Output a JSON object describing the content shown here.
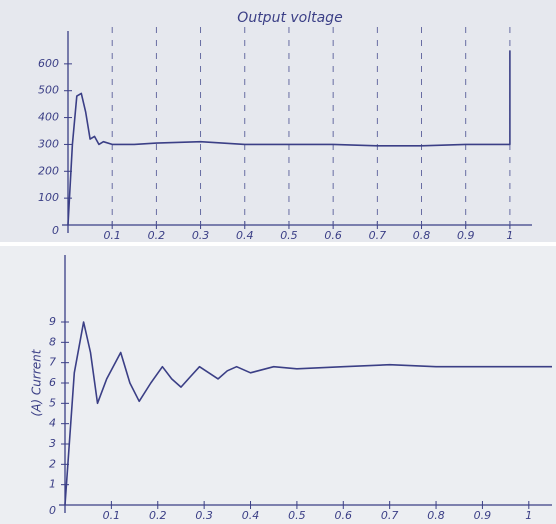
{
  "chart_data": [
    {
      "type": "line",
      "title": "Output voltage",
      "x": [
        0,
        0.01,
        0.02,
        0.03,
        0.04,
        0.05,
        0.06,
        0.07,
        0.08,
        0.1,
        0.15,
        0.2,
        0.3,
        0.4,
        0.5,
        0.6,
        0.7,
        0.8,
        0.9,
        0.99,
        1,
        1
      ],
      "values": [
        0,
        300,
        480,
        490,
        420,
        320,
        330,
        300,
        310,
        300,
        300,
        305,
        310,
        300,
        300,
        300,
        295,
        295,
        300,
        300,
        300,
        650
      ],
      "color": "#3b3f86",
      "xlim": [
        0,
        1.05
      ],
      "ylim": [
        0,
        700
      ],
      "xticks": [
        0.1,
        0.2,
        0.3,
        0.4,
        0.5,
        0.6,
        0.7,
        0.8,
        0.9,
        1
      ],
      "yticks": [
        0,
        100,
        200,
        300,
        400,
        500,
        600
      ],
      "grid": true
    },
    {
      "type": "line",
      "y_label": "(A) Current",
      "x": [
        0,
        0.02,
        0.04,
        0.055,
        0.07,
        0.09,
        0.12,
        0.14,
        0.16,
        0.185,
        0.21,
        0.23,
        0.25,
        0.27,
        0.29,
        0.31,
        0.33,
        0.35,
        0.37,
        0.4,
        0.45,
        0.5,
        0.6,
        0.7,
        0.8,
        0.9,
        1.05
      ],
      "values": [
        0,
        6.5,
        9,
        7.5,
        5,
        6.2,
        7.5,
        6,
        5.1,
        6,
        6.8,
        6.2,
        5.8,
        6.3,
        6.8,
        6.5,
        6.2,
        6.6,
        6.8,
        6.5,
        6.8,
        6.7,
        6.8,
        6.9,
        6.8,
        6.8,
        6.8
      ],
      "color": "#3b3f86",
      "xlim": [
        0,
        1.05
      ],
      "ylim": [
        0,
        12
      ],
      "xticks": [
        0.1,
        0.2,
        0.3,
        0.4,
        0.5,
        0.6,
        0.7,
        0.8,
        0.9,
        1
      ],
      "yticks": [
        0,
        1,
        2,
        3,
        4,
        5,
        6,
        7,
        8,
        9
      ],
      "grid": false
    }
  ]
}
